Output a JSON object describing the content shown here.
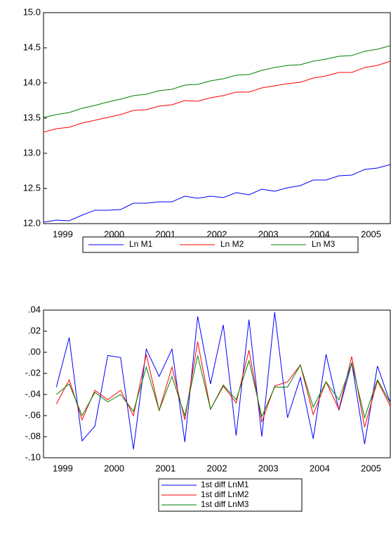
{
  "chart_data": [
    {
      "type": "line",
      "categories": [
        null,
        "1999",
        null,
        null,
        null,
        "2000",
        null,
        null,
        null,
        "2001",
        null,
        null,
        null,
        "2002",
        null,
        null,
        null,
        "2003",
        null,
        null,
        null,
        "2004",
        null,
        null,
        null,
        "2005",
        null,
        null
      ],
      "series": [
        {
          "name": "Ln M1",
          "color": "#0000ff",
          "values": [
            12.02,
            12.05,
            12.04,
            12.12,
            12.19,
            12.19,
            12.2,
            12.29,
            12.29,
            12.31,
            12.31,
            12.39,
            12.36,
            12.39,
            12.37,
            12.44,
            12.41,
            12.49,
            12.46,
            12.51,
            12.54,
            12.62,
            12.62,
            12.68,
            12.69,
            12.77,
            12.79,
            12.84
          ]
        },
        {
          "name": "Ln M2",
          "color": "#ff0000",
          "values": [
            13.3,
            13.35,
            13.37,
            13.43,
            13.47,
            13.51,
            13.55,
            13.61,
            13.62,
            13.67,
            13.69,
            13.75,
            13.74,
            13.79,
            13.82,
            13.87,
            13.87,
            13.93,
            13.96,
            13.99,
            14.01,
            14.07,
            14.1,
            14.15,
            14.15,
            14.22,
            14.25,
            14.31
          ]
        },
        {
          "name": "Ln M3",
          "color": "#008000",
          "values": [
            13.51,
            13.55,
            13.58,
            13.64,
            13.68,
            13.73,
            13.77,
            13.82,
            13.84,
            13.89,
            13.91,
            13.97,
            13.98,
            14.03,
            14.06,
            14.11,
            14.12,
            14.18,
            14.22,
            14.25,
            14.26,
            14.31,
            14.34,
            14.38,
            14.39,
            14.45,
            14.48,
            14.53
          ]
        }
      ],
      "ylim": [
        12,
        15
      ],
      "yticks": [
        {
          "value": 12,
          "label": "12.0"
        },
        {
          "value": 12.5,
          "label": "12.5"
        },
        {
          "value": 13,
          "label": "13.0"
        },
        {
          "value": 13.5,
          "label": "13.5"
        },
        {
          "value": 14,
          "label": "14.0"
        },
        {
          "value": 14.5,
          "label": "14.5"
        },
        {
          "value": 15,
          "label": "15.0"
        }
      ],
      "legend": "bottom",
      "legend_layout": "row"
    },
    {
      "type": "line",
      "categories": [
        null,
        "1999",
        null,
        null,
        null,
        "2000",
        null,
        null,
        null,
        "2001",
        null,
        null,
        null,
        "2002",
        null,
        null,
        null,
        "2003",
        null,
        null,
        null,
        "2004",
        null,
        null,
        null,
        "2005",
        null,
        null
      ],
      "series": [
        {
          "name": "1st diff LnM1",
          "color": "#0000ff",
          "values": [
            null,
            -0.033,
            0.014,
            -0.084,
            -0.07,
            -0.003,
            -0.005,
            -0.092,
            0.003,
            -0.023,
            0.003,
            -0.085,
            0.034,
            -0.03,
            0.026,
            -0.079,
            0.031,
            -0.08,
            0.038,
            -0.062,
            -0.024,
            -0.082,
            -0.002,
            -0.055,
            -0.01,
            -0.087,
            -0.013,
            -0.048
          ]
        },
        {
          "name": "1st diff LnM2",
          "color": "#ff0000",
          "values": [
            null,
            -0.049,
            -0.026,
            -0.064,
            -0.036,
            -0.045,
            -0.036,
            -0.06,
            -0.002,
            -0.055,
            -0.014,
            -0.064,
            0.01,
            -0.054,
            -0.032,
            -0.048,
            0.002,
            -0.066,
            -0.032,
            -0.028,
            -0.012,
            -0.059,
            -0.028,
            -0.054,
            -0.004,
            -0.071,
            -0.027,
            -0.051
          ]
        },
        {
          "name": "1st diff LnM3",
          "color": "#008000",
          "values": [
            null,
            -0.04,
            -0.03,
            -0.06,
            -0.038,
            -0.047,
            -0.04,
            -0.056,
            -0.014,
            -0.055,
            -0.023,
            -0.06,
            -0.003,
            -0.054,
            -0.031,
            -0.045,
            -0.008,
            -0.061,
            -0.033,
            -0.033,
            -0.012,
            -0.052,
            -0.028,
            -0.045,
            -0.01,
            -0.062,
            -0.026,
            -0.048
          ]
        }
      ],
      "ylim": [
        -0.1,
        0.04
      ],
      "yticks": [
        {
          "value": -0.1,
          "label": "-.10"
        },
        {
          "value": -0.08,
          "label": "-.08"
        },
        {
          "value": -0.06,
          "label": "-.06"
        },
        {
          "value": -0.04,
          "label": "-.04"
        },
        {
          "value": -0.02,
          "label": "-.02"
        },
        {
          "value": 0,
          "label": ".00"
        },
        {
          "value": 0.02,
          "label": ".02"
        },
        {
          "value": 0.04,
          "label": ".04"
        }
      ],
      "legend": "bottom",
      "legend_layout": "column"
    }
  ]
}
